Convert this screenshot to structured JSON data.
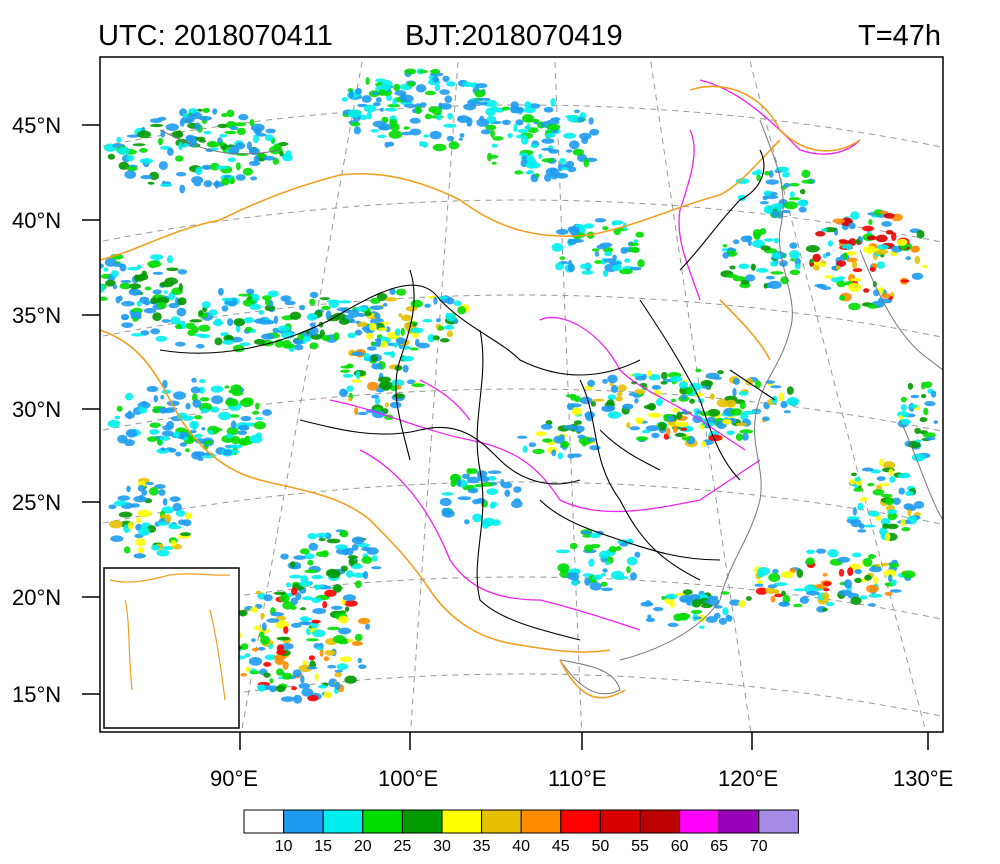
{
  "header": {
    "utc": "UTC: 2018070411",
    "bjt": "BJT:2018070419",
    "forecast_hour": "T=47h"
  },
  "axes": {
    "lat_labels": [
      "45°N",
      "40°N",
      "35°N",
      "30°N",
      "25°N",
      "20°N",
      "15°N"
    ],
    "lon_labels": [
      "90°E",
      "100°E",
      "110°E",
      "120°E",
      "130°E"
    ]
  },
  "colorbar": {
    "labels": [
      "10",
      "15",
      "20",
      "25",
      "30",
      "35",
      "40",
      "45",
      "50",
      "55",
      "60",
      "65",
      "70"
    ],
    "colors": [
      "#ffffff",
      "#1e9bf0",
      "#00eeee",
      "#00dd00",
      "#009900",
      "#ffff00",
      "#e6c000",
      "#ff8c00",
      "#ff0000",
      "#d80000",
      "#bb0000",
      "#ff00ff",
      "#9900bb",
      "#a58ce6"
    ]
  },
  "map_colors": {
    "coastline": "#777777",
    "graticule": "#999999",
    "province_border": "#000000",
    "national_border": "#f0a020",
    "rivers": "#ee22ee"
  }
}
